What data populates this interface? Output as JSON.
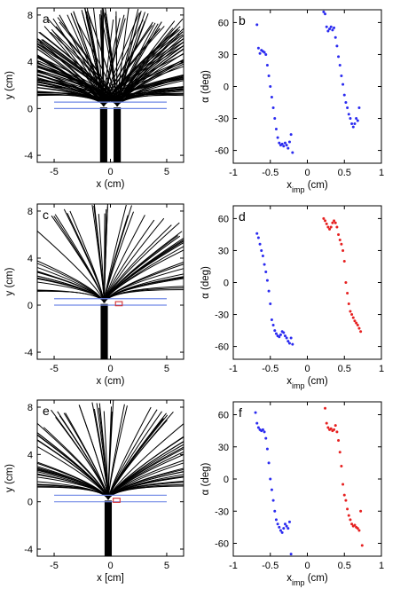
{
  "chart_data": [
    {
      "id": "a",
      "type": "line",
      "panel_label": "a",
      "kind": "trajectory",
      "xlabel": "x (cm)",
      "ylabel": "y (cm)",
      "xlim": [
        -6.5,
        6.5
      ],
      "ylim": [
        -4.6,
        8.6
      ],
      "xticks": [
        -5,
        0,
        5
      ],
      "yticks": [
        -4,
        0,
        4,
        8
      ],
      "line_color": "#000000",
      "guide_color": "#6f87e6",
      "sources": [
        -0.6,
        0.6
      ],
      "fan_count": [
        90,
        90
      ],
      "fan_spread": 0.55,
      "wall_y": [
        0,
        0.55
      ],
      "wall_x": [
        -5,
        5
      ],
      "defect": "two slits"
    },
    {
      "id": "b",
      "type": "scatter",
      "panel_label": "b",
      "xlabel": "x",
      "xlabel_sub": "imp",
      "xlabel_unit": " (cm)",
      "ylabel": "α (deg)",
      "xlim": [
        -1,
        1
      ],
      "ylim": [
        -72,
        72
      ],
      "xticks": [
        -1,
        -0.5,
        0,
        0.5,
        1
      ],
      "yticks": [
        -60,
        -30,
        0,
        30,
        60
      ],
      "series": [
        {
          "color": "#2b2bf0",
          "x": [
            -0.68,
            -0.66,
            -0.64,
            -0.62,
            -0.6,
            -0.58,
            -0.56,
            -0.54,
            -0.52,
            -0.5,
            -0.48,
            -0.46,
            -0.44,
            -0.42,
            -0.4,
            -0.38,
            -0.36,
            -0.34,
            -0.32,
            -0.3,
            -0.28,
            -0.26,
            -0.24,
            -0.22,
            -0.2
          ],
          "y": [
            58,
            36,
            31,
            34,
            33,
            32,
            30,
            20,
            10,
            0,
            -10,
            -20,
            -30,
            -40,
            -48,
            -53,
            -55,
            -54,
            -56,
            -53,
            -55,
            -58,
            -52,
            -45,
            -62
          ]
        },
        {
          "color": "#2b2bf0",
          "x": [
            0.22,
            0.24,
            0.26,
            0.28,
            0.3,
            0.32,
            0.34,
            0.36,
            0.38,
            0.4,
            0.42,
            0.44,
            0.46,
            0.48,
            0.5,
            0.52,
            0.54,
            0.56,
            0.58,
            0.6,
            0.62,
            0.64,
            0.66,
            0.68,
            0.7
          ],
          "y": [
            70,
            68,
            56,
            52,
            54,
            56,
            53,
            55,
            46,
            38,
            28,
            20,
            10,
            2,
            -8,
            -15,
            -20,
            -26,
            -30,
            -35,
            -38,
            -35,
            -30,
            -32,
            -20
          ]
        }
      ]
    },
    {
      "id": "c",
      "type": "line",
      "panel_label": "c",
      "kind": "trajectory",
      "xlabel": "x (cm)",
      "ylabel": "y (cm)",
      "xlim": [
        -6.5,
        6.5
      ],
      "ylim": [
        -4.6,
        8.6
      ],
      "xticks": [
        -5,
        0,
        5
      ],
      "yticks": [
        -4,
        0,
        4,
        8
      ],
      "line_color": "#000000",
      "guide_color": "#6f87e6",
      "sources": [
        -0.55
      ],
      "fan_count": [
        60
      ],
      "fan_spread": 0.5,
      "wall_y": [
        0,
        0.55
      ],
      "wall_x": [
        -5,
        5
      ],
      "defect": "one slit with red box"
    },
    {
      "id": "d",
      "type": "scatter",
      "panel_label": "d",
      "xlabel": "x",
      "xlabel_sub": "imp",
      "xlabel_unit": " (cm)",
      "ylabel": "α (deg)",
      "xlim": [
        -1,
        1
      ],
      "ylim": [
        -72,
        72
      ],
      "xticks": [
        -1,
        -0.5,
        0,
        0.5,
        1
      ],
      "yticks": [
        -60,
        -30,
        0,
        30,
        60
      ],
      "series": [
        {
          "color": "#2b2bf0",
          "x": [
            -0.68,
            -0.66,
            -0.64,
            -0.62,
            -0.6,
            -0.58,
            -0.56,
            -0.54,
            -0.52,
            -0.5,
            -0.48,
            -0.46,
            -0.44,
            -0.42,
            -0.4,
            -0.38,
            -0.36,
            -0.34,
            -0.32,
            -0.3,
            -0.28,
            -0.26,
            -0.24,
            -0.22,
            -0.2
          ],
          "y": [
            46,
            42,
            36,
            30,
            25,
            17,
            10,
            2,
            -8,
            -20,
            -35,
            -40,
            -45,
            -48,
            -50,
            -51,
            -49,
            -46,
            -47,
            -50,
            -52,
            -55,
            -57,
            -52,
            -58
          ]
        },
        {
          "color": "#e62020",
          "x": [
            0.22,
            0.24,
            0.26,
            0.28,
            0.3,
            0.32,
            0.34,
            0.36,
            0.38,
            0.4,
            0.42,
            0.44,
            0.46,
            0.48,
            0.5,
            0.52,
            0.54,
            0.56,
            0.58,
            0.6,
            0.62,
            0.64,
            0.66,
            0.68,
            0.7,
            0.72
          ],
          "y": [
            60,
            58,
            55,
            52,
            50,
            52,
            56,
            58,
            56,
            52,
            45,
            40,
            36,
            30,
            20,
            0,
            -10,
            -20,
            -27,
            -30,
            -33,
            -36,
            -38,
            -40,
            -43,
            -46
          ]
        }
      ]
    },
    {
      "id": "e",
      "type": "line",
      "panel_label": "e",
      "kind": "trajectory",
      "xlabel": "x [cm]",
      "ylabel": "y (cm)",
      "xlim": [
        -6.5,
        6.5
      ],
      "ylim": [
        -4.6,
        8.6
      ],
      "xticks": [
        -5,
        0,
        5
      ],
      "yticks": [
        -4,
        0,
        4,
        8
      ],
      "line_color": "#000000",
      "guide_color": "#6f87e6",
      "sources": [
        -0.2
      ],
      "fan_count": [
        80
      ],
      "fan_spread": 0.6,
      "wall_y": [
        0,
        0.55
      ],
      "wall_x": [
        -5,
        5
      ],
      "defect": "slit with red box"
    },
    {
      "id": "f",
      "type": "scatter",
      "panel_label": "f",
      "xlabel": "x",
      "xlabel_sub": "imp",
      "xlabel_unit": " (cm)",
      "ylabel": "α (deg)",
      "xlim": [
        -1,
        1
      ],
      "ylim": [
        -72,
        72
      ],
      "xticks": [
        -1,
        -0.5,
        0,
        0.5,
        1
      ],
      "yticks": [
        -60,
        -30,
        0,
        30,
        60
      ],
      "series": [
        {
          "color": "#2b2bf0",
          "x": [
            -0.7,
            -0.68,
            -0.66,
            -0.64,
            -0.62,
            -0.6,
            -0.58,
            -0.56,
            -0.54,
            -0.52,
            -0.5,
            -0.48,
            -0.46,
            -0.44,
            -0.42,
            -0.4,
            -0.38,
            -0.36,
            -0.34,
            -0.32,
            -0.3,
            -0.28,
            -0.26,
            -0.24,
            -0.22
          ],
          "y": [
            62,
            52,
            48,
            46,
            45,
            46,
            44,
            38,
            28,
            15,
            0,
            -10,
            -20,
            -30,
            -38,
            -42,
            -45,
            -48,
            -50,
            -46,
            -42,
            -44,
            -46,
            -40,
            -70
          ]
        },
        {
          "color": "#e62020",
          "x": [
            0.24,
            0.26,
            0.28,
            0.3,
            0.32,
            0.34,
            0.36,
            0.38,
            0.4,
            0.42,
            0.44,
            0.46,
            0.48,
            0.5,
            0.52,
            0.54,
            0.56,
            0.58,
            0.6,
            0.62,
            0.64,
            0.66,
            0.68,
            0.7,
            0.72,
            0.74
          ],
          "y": [
            66,
            52,
            48,
            46,
            47,
            45,
            46,
            50,
            44,
            36,
            25,
            12,
            -5,
            -15,
            -20,
            -28,
            -34,
            -38,
            -42,
            -44,
            -43,
            -45,
            -46,
            -48,
            -30,
            -62
          ]
        }
      ]
    }
  ]
}
